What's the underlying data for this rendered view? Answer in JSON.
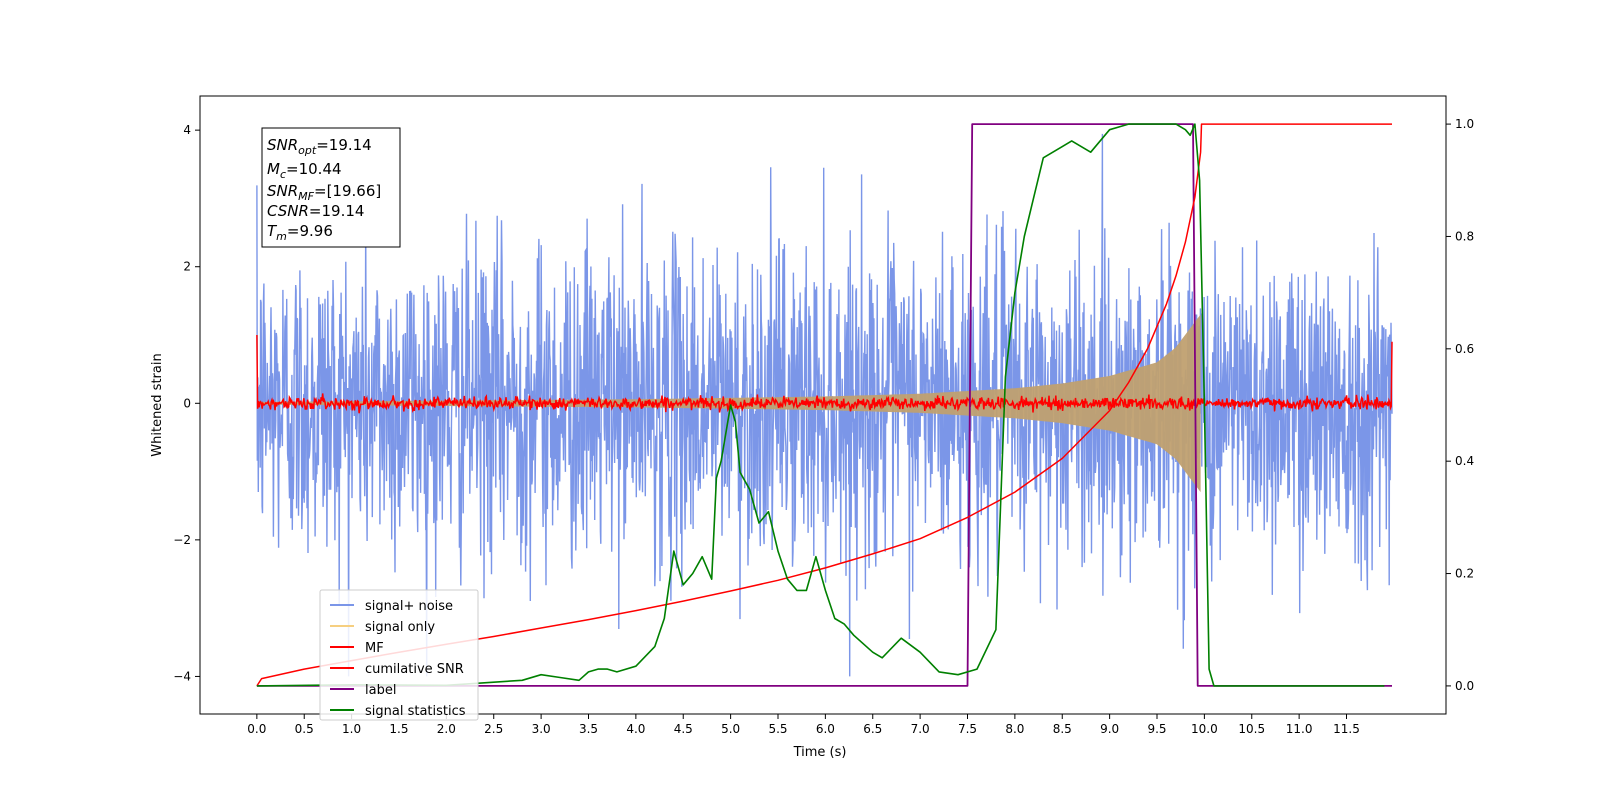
{
  "chart_data": {
    "type": "line",
    "xlabel": "Time (s)",
    "ylabel": "Whitened strain",
    "xlim": [
      -0.6,
      12.55
    ],
    "ylim": [
      -4.55,
      4.5
    ],
    "y2lim": [
      -0.05,
      1.05
    ],
    "x_ticks": [
      "0.0",
      "0.5",
      "1.0",
      "1.5",
      "2.0",
      "2.5",
      "3.0",
      "3.5",
      "4.0",
      "4.5",
      "5.0",
      "5.5",
      "6.0",
      "6.5",
      "7.0",
      "7.5",
      "8.0",
      "8.5",
      "9.0",
      "9.5",
      "10.0",
      "10.5",
      "11.0",
      "11.5"
    ],
    "y_ticks": [
      "4",
      "2",
      "0",
      "−2",
      "−4"
    ],
    "y2_ticks": [
      "1.0",
      "0.8",
      "0.6",
      "0.4",
      "0.2",
      "0.0"
    ],
    "grid": false,
    "legend_position": "lower-left",
    "legend": [
      {
        "label": "signal+ noise",
        "color": "#7b96e8"
      },
      {
        "label": "signal only",
        "color": "#f6cf80"
      },
      {
        "label": "MF",
        "color": "#ff0000"
      },
      {
        "label": "cumilative SNR",
        "color": "#ff0000"
      },
      {
        "label": "label",
        "color": "#800080"
      },
      {
        "label": "signal statistics",
        "color": "#008000"
      }
    ],
    "annotation": {
      "snr_opt": {
        "sym": "SNR",
        "sub": "opt",
        "value": "=19.14"
      },
      "mc": {
        "sym": "M",
        "sub": "c",
        "value": "=10.44"
      },
      "snr_mf": {
        "sym": "SNR",
        "sub": "MF",
        "value": "=[19.66]"
      },
      "csnr": {
        "sym": "CSNR",
        "sub": "",
        "value": "=19.14"
      },
      "tm": {
        "sym": "T",
        "sub": "m",
        "value": "=9.96"
      }
    },
    "series": [
      {
        "name": "signal+ noise",
        "axis": "left",
        "color": "#7b96e8",
        "x_range": [
          0,
          11.98
        ],
        "amplitude_sigma": 1.0,
        "peak_range": [
          -4.0,
          3.95
        ]
      },
      {
        "name": "signal only",
        "axis": "left",
        "color": "#c0a070",
        "x_range": [
          0,
          9.96
        ],
        "envelope_x": [
          0,
          2,
          4,
          6,
          7,
          8,
          8.5,
          9,
          9.5,
          9.7,
          9.85,
          9.96
        ],
        "envelope_y": [
          0.02,
          0.04,
          0.06,
          0.1,
          0.14,
          0.22,
          0.29,
          0.4,
          0.6,
          0.82,
          1.1,
          1.3
        ]
      },
      {
        "name": "MF",
        "axis": "left",
        "color": "#ff0000",
        "x_range": [
          0,
          11.98
        ],
        "level": 0.0,
        "edge_values": [
          1.0,
          0.9
        ]
      },
      {
        "name": "cumilative SNR",
        "axis": "right",
        "color": "#ff0000",
        "x": [
          0,
          0.05,
          0.5,
          1.0,
          1.5,
          2.0,
          2.5,
          3.0,
          3.5,
          4.0,
          4.5,
          5.0,
          5.5,
          6.0,
          6.5,
          7.0,
          7.5,
          8.0,
          8.5,
          9.0,
          9.2,
          9.4,
          9.6,
          9.7,
          9.8,
          9.9,
          9.96,
          9.97,
          11.98
        ],
        "y": [
          0.0,
          0.013,
          0.03,
          0.045,
          0.06,
          0.074,
          0.088,
          0.103,
          0.118,
          0.134,
          0.151,
          0.169,
          0.188,
          0.21,
          0.235,
          0.262,
          0.3,
          0.345,
          0.405,
          0.49,
          0.54,
          0.6,
          0.68,
          0.73,
          0.79,
          0.87,
          0.95,
          1.0,
          1.0
        ]
      },
      {
        "name": "label",
        "axis": "right",
        "color": "#800080",
        "x": [
          0,
          7.5,
          7.55,
          9.88,
          9.93,
          11.98
        ],
        "y": [
          0.0,
          0.0,
          1.0,
          1.0,
          0.0,
          0.0
        ]
      },
      {
        "name": "signal statistics",
        "axis": "right",
        "color": "#008000",
        "x": [
          0,
          1.0,
          2.0,
          2.8,
          3.0,
          3.2,
          3.4,
          3.5,
          3.6,
          3.7,
          3.8,
          4.0,
          4.2,
          4.3,
          4.4,
          4.5,
          4.6,
          4.7,
          4.8,
          4.85,
          4.9,
          5.0,
          5.05,
          5.1,
          5.2,
          5.3,
          5.4,
          5.5,
          5.6,
          5.7,
          5.8,
          5.9,
          6.0,
          6.1,
          6.2,
          6.3,
          6.5,
          6.6,
          6.8,
          7.0,
          7.2,
          7.4,
          7.6,
          7.8,
          7.9,
          8.0,
          8.1,
          8.2,
          8.3,
          8.5,
          8.6,
          8.8,
          9.0,
          9.2,
          9.5,
          9.7,
          9.8,
          9.85,
          9.9,
          9.95,
          10.0,
          10.05,
          10.1,
          10.5,
          11.0,
          11.5,
          11.9
        ],
        "y": [
          0.0,
          0.002,
          0.001,
          0.01,
          0.02,
          0.015,
          0.01,
          0.025,
          0.03,
          0.03,
          0.025,
          0.035,
          0.07,
          0.12,
          0.24,
          0.18,
          0.2,
          0.23,
          0.19,
          0.37,
          0.4,
          0.5,
          0.47,
          0.38,
          0.35,
          0.29,
          0.31,
          0.24,
          0.19,
          0.17,
          0.17,
          0.23,
          0.17,
          0.12,
          0.11,
          0.09,
          0.06,
          0.05,
          0.085,
          0.06,
          0.025,
          0.02,
          0.03,
          0.1,
          0.55,
          0.7,
          0.8,
          0.87,
          0.94,
          0.96,
          0.97,
          0.95,
          0.99,
          1.0,
          1.0,
          1.0,
          0.99,
          0.98,
          1.0,
          0.9,
          0.5,
          0.03,
          0.0,
          0.0,
          0.0,
          0.0,
          0.0
        ]
      }
    ]
  }
}
